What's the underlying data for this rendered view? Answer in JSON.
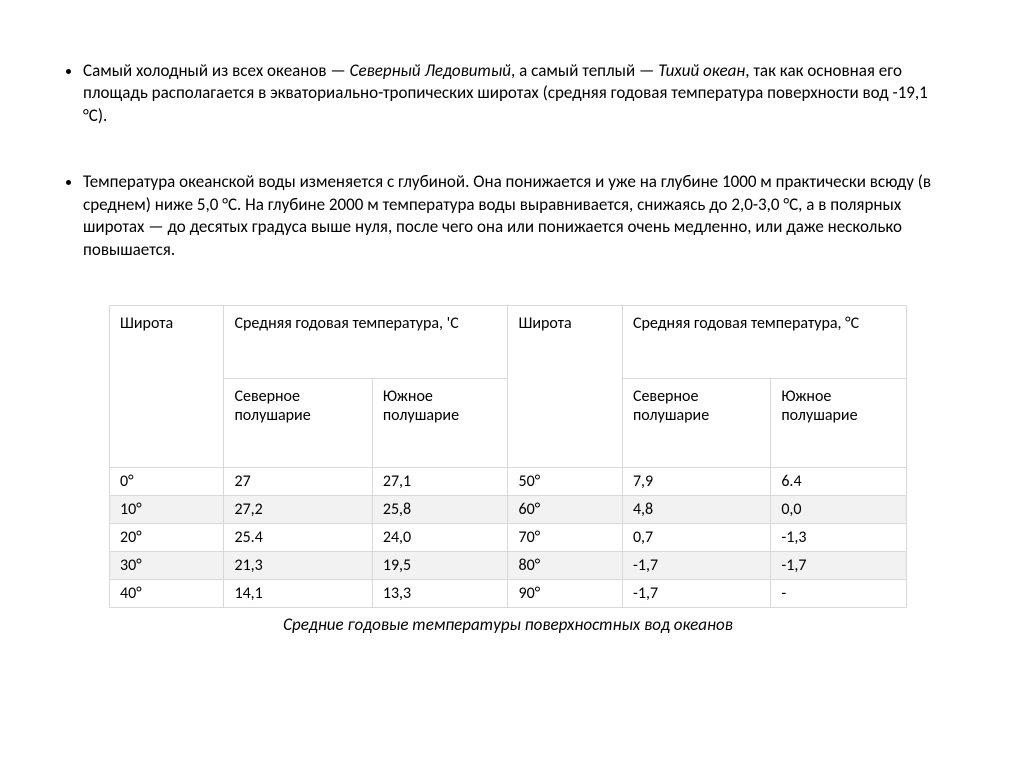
{
  "bullets": [
    {
      "prefix": "Самый холодный из всех океанов — ",
      "italic1": "Северный Ледовитый",
      "mid": ", а самый теплый — ",
      "italic2": "Тихий океан",
      "suffix": ", так как основная его площадь располагается в экваториально-тропических широтах (средняя годовая температура поверхности вод -19,1 °С)."
    },
    {
      "text": "Температура океанской воды изменяется с глубиной. Она понижается и уже на глубине 1000 м практически всюду (в среднем) ниже 5,0 °С. На глубине 2000 м температура воды выравнивается, снижаясь до 2,0-3,0 °С, а в полярных широтах — до десятых градуса выше нуля, после чего она или понижается очень медленно, или даже несколько повышается."
    }
  ],
  "table": {
    "headers": {
      "lat_a": "Широта",
      "temp_a": "Средняя годовая температура, 'С",
      "lat_b": "Широта",
      "temp_b": "Средняя годовая температура, °С",
      "north": "Северное полушарие",
      "south": "Южное полушарие"
    },
    "rows": [
      [
        "0°",
        "27",
        "27,1",
        "50°",
        "7,9",
        "6.4"
      ],
      [
        "10°",
        "27,2",
        "25,8",
        "60°",
        "4,8",
        "0,0"
      ],
      [
        "20°",
        "25.4",
        "24,0",
        "70°",
        "0,7",
        "-1,3"
      ],
      [
        "30°",
        "21,3",
        "19,5",
        "80°",
        "-1,7",
        "-1,7"
      ],
      [
        "40°",
        "14,1",
        "13,3",
        "90°",
        "-1,7",
        "-"
      ]
    ],
    "col_widths": [
      "108px",
      "140px",
      "128px",
      "108px",
      "140px",
      "128px"
    ],
    "border_color": "#d9d9d9",
    "alt_row_bg": "#f2f2f2",
    "font_size": 16
  },
  "caption": "Средние годовые температуры поверхностных вод океанов"
}
